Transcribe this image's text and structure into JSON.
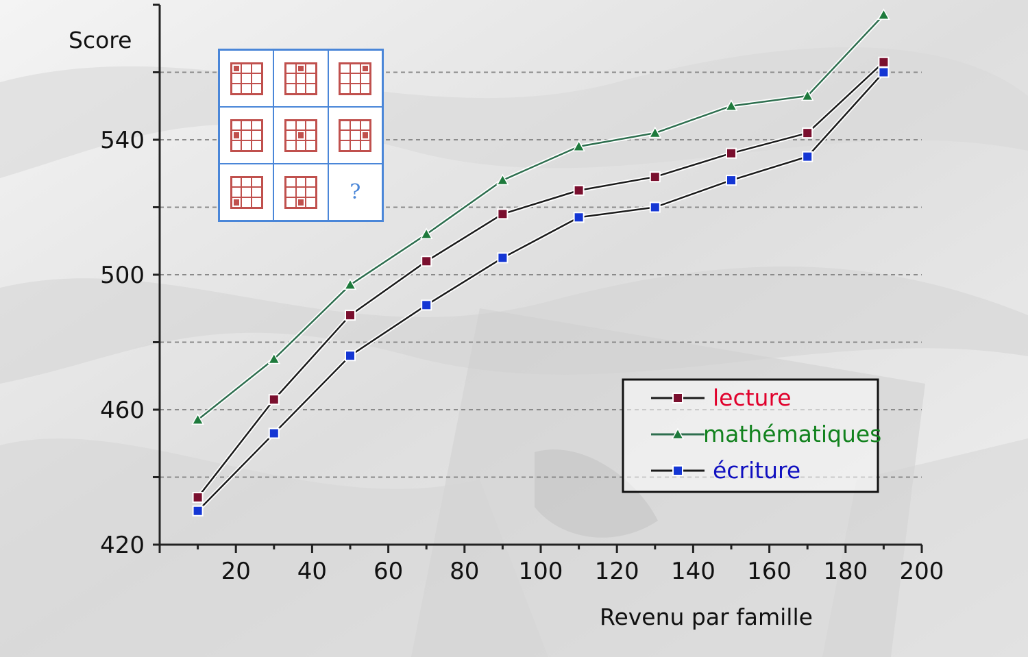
{
  "chart_data": {
    "type": "line",
    "title": "",
    "xlabel": "Revenu par famille",
    "ylabel": "Score",
    "xlim": [
      0,
      200
    ],
    "ylim": [
      420,
      580
    ],
    "x_ticks": [
      20,
      40,
      60,
      80,
      100,
      120,
      140,
      160,
      180,
      200
    ],
    "y_ticks": [
      420,
      460,
      500,
      540
    ],
    "y_grid": [
      440,
      460,
      480,
      500,
      520,
      540,
      560
    ],
    "grid": "horizontal-dashed",
    "legend_position": "bottom-right",
    "x": [
      10,
      30,
      50,
      70,
      90,
      110,
      130,
      150,
      170,
      190
    ],
    "series": [
      {
        "name": "lecture",
        "marker": "square",
        "line_color": "#1a1a1a",
        "marker_color": "#7a0f2e",
        "label_color": "#e0002b",
        "values": [
          434,
          463,
          488,
          504,
          518,
          525,
          529,
          536,
          542,
          563
        ]
      },
      {
        "name": "mathématiques",
        "marker": "triangle",
        "line_color": "#2d6e4e",
        "marker_color": "#1e7a3c",
        "label_color": "#12821e",
        "values": [
          457,
          475,
          497,
          512,
          528,
          538,
          542,
          550,
          553,
          577
        ]
      },
      {
        "name": "écriture",
        "marker": "square",
        "line_color": "#1a1a1a",
        "marker_color": "#1436d4",
        "label_color": "#1010c0",
        "values": [
          430,
          453,
          476,
          491,
          505,
          517,
          520,
          528,
          535,
          560
        ]
      }
    ]
  },
  "puzzle": {
    "cells": [
      {
        "dot": 0
      },
      {
        "dot": 1
      },
      {
        "dot": 2
      },
      {
        "dot": 3
      },
      {
        "dot": 4
      },
      {
        "dot": 5
      },
      {
        "dot": 6
      },
      {
        "dot": 7
      },
      {
        "question": "?"
      }
    ],
    "border_color": "#4a86d8",
    "pattern_color": "#c0504d"
  }
}
